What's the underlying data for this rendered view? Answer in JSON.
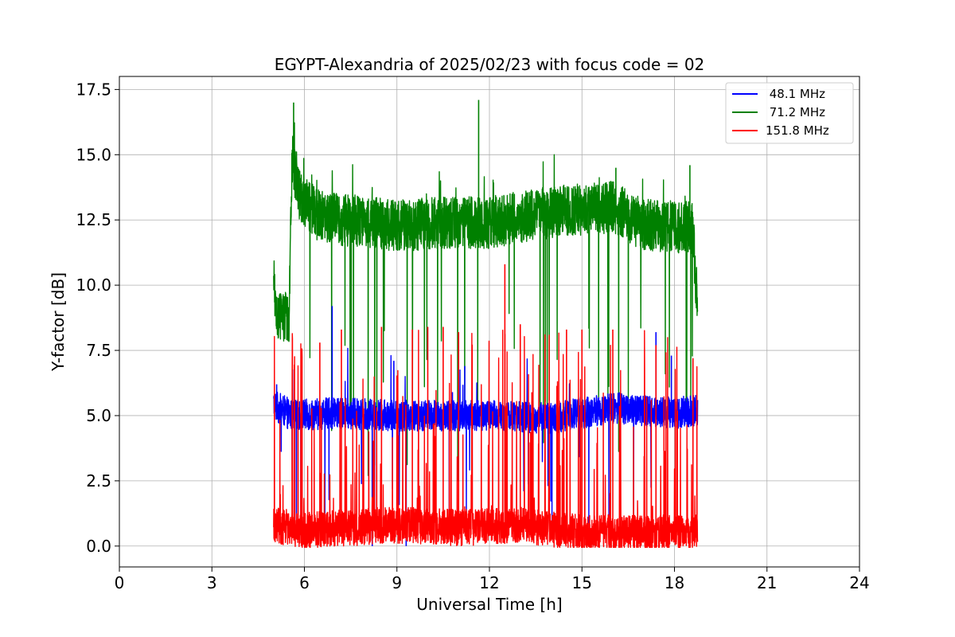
{
  "chart_data": {
    "type": "line",
    "title": "EGYPT-Alexandria of 2025/02/23 with focus code = 02",
    "xlabel": "Universal Time [h]",
    "ylabel": "Y-factor [dB]",
    "xlim": [
      0,
      24
    ],
    "ylim": [
      -0.8,
      18.0
    ],
    "x_ticks": [
      0,
      3,
      6,
      9,
      12,
      15,
      18,
      21,
      24
    ],
    "x_tick_labels": [
      "0",
      "3",
      "6",
      "9",
      "12",
      "15",
      "18",
      "21",
      "24"
    ],
    "y_ticks": [
      0,
      2.5,
      5,
      7.5,
      10,
      12.5,
      15,
      17.5
    ],
    "y_tick_labels": [
      "0.0",
      "2.5",
      "5.0",
      "7.5",
      "10.0",
      "12.5",
      "15.0",
      "17.5"
    ],
    "grid": true,
    "legend_position": "top-right",
    "series": [
      {
        "name": " 48.1 MHz",
        "color": "#0000ff",
        "x_range": [
          5.0,
          18.75
        ],
        "baseline": [
          [
            5.0,
            5.4
          ],
          [
            5.6,
            5.0
          ],
          [
            7.0,
            5.1
          ],
          [
            9.0,
            5.0
          ],
          [
            12.0,
            5.0
          ],
          [
            14.0,
            4.9
          ],
          [
            16.0,
            5.3
          ],
          [
            18.0,
            5.1
          ],
          [
            18.75,
            5.2
          ]
        ],
        "spread": 0.6,
        "peaks": [
          [
            5.1,
            6.2
          ],
          [
            6.9,
            9.2
          ],
          [
            8.2,
            0.0
          ],
          [
            8.9,
            7.1
          ],
          [
            9.3,
            0.0
          ],
          [
            10.8,
            5.9
          ],
          [
            11.2,
            6.9
          ],
          [
            13.9,
            2.3
          ],
          [
            17.4,
            8.2
          ],
          [
            17.9,
            7.3
          ]
        ]
      },
      {
        "name": " 71.2 MHz",
        "color": "#008000",
        "x_range": [
          5.0,
          18.75
        ],
        "baseline": [
          [
            5.0,
            10.2
          ],
          [
            5.1,
            8.8
          ],
          [
            5.5,
            8.7
          ],
          [
            5.6,
            15.0
          ],
          [
            5.8,
            13.5
          ],
          [
            6.5,
            12.6
          ],
          [
            9.0,
            12.3
          ],
          [
            11.0,
            12.4
          ],
          [
            12.0,
            12.4
          ],
          [
            14.0,
            12.8
          ],
          [
            16.0,
            13.0
          ],
          [
            17.0,
            12.3
          ],
          [
            18.6,
            12.2
          ],
          [
            18.7,
            9.7
          ],
          [
            18.75,
            9.8
          ]
        ],
        "spread": 1.0,
        "peaks": [
          [
            5.65,
            17.0
          ],
          [
            11.65,
            17.1
          ],
          [
            16.1,
            14.5
          ],
          [
            18.5,
            14.6
          ]
        ]
      },
      {
        "name": "151.8 MHz",
        "color": "#ff0000",
        "x_range": [
          5.0,
          18.75
        ],
        "baseline": [
          [
            5.0,
            0.8
          ],
          [
            6.0,
            0.6
          ],
          [
            7.5,
            0.7
          ],
          [
            9.0,
            0.8
          ],
          [
            11.0,
            0.7
          ],
          [
            13.0,
            0.8
          ],
          [
            15.0,
            0.5
          ],
          [
            17.0,
            0.5
          ],
          [
            18.75,
            0.5
          ]
        ],
        "spread": 0.7,
        "peaks": [
          [
            6.5,
            7.8
          ],
          [
            7.2,
            8.3
          ],
          [
            8.5,
            8.4
          ],
          [
            9.5,
            8.3
          ],
          [
            10.0,
            8.4
          ],
          [
            10.5,
            8.4
          ],
          [
            11.0,
            8.2
          ],
          [
            12.5,
            10.8
          ],
          [
            13.0,
            8.5
          ],
          [
            14.5,
            8.3
          ],
          [
            15.0,
            8.3
          ],
          [
            16.0,
            8.3
          ],
          [
            17.4,
            7.7
          ],
          [
            18.6,
            7.2
          ]
        ]
      }
    ]
  }
}
